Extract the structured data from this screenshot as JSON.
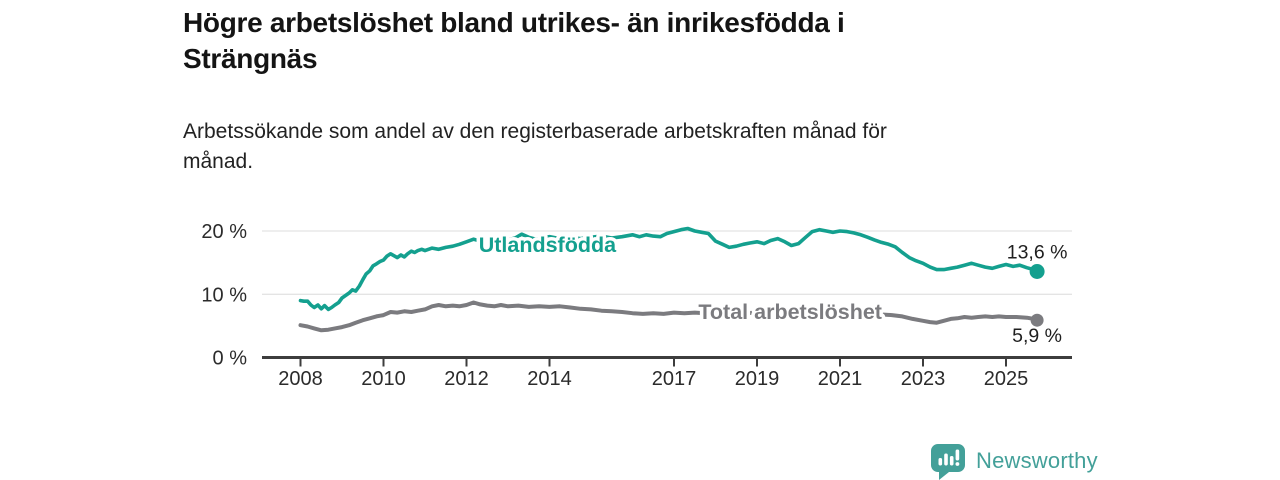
{
  "header": {
    "title": "Högre arbetslöshet bland utrikes- än inrikesfödda i\nSträngnäs",
    "subtitle": "Arbetssökande som andel av den registerbaserade arbetskraften månad för\nmånad."
  },
  "footer": {
    "brand": "Newsworthy",
    "brand_color": "#43a099",
    "logo_icon": "bar-chart-speech-bubble-icon"
  },
  "chart_data": {
    "type": "line",
    "title": "Högre arbetslöshet bland utrikes- än inrikesfödda i Strängnäs",
    "subtitle": "Arbetssökande som andel av den registerbaserade arbetskraften månad för månad.",
    "grid": "horizontal",
    "legend_position": "inline-labels",
    "x_axis": {
      "ticks": [
        2008,
        2010,
        2012,
        2014,
        2017,
        2019,
        2021,
        2023,
        2025
      ],
      "range": [
        2008,
        2025.75
      ]
    },
    "y_axis": {
      "ticks": [
        0,
        10,
        20
      ],
      "tick_suffix": " %",
      "range": [
        0,
        22
      ]
    },
    "colors": {
      "axis": "#3d3d3d",
      "gridline": "#e4e4e4",
      "tick_label": "#2b2b2b",
      "value_label": "#1f1f1f"
    },
    "series": [
      {
        "name": "Utlandsfödda",
        "color": "#14a08f",
        "end_value": 13.6,
        "end_label": "13,6 %",
        "value_label_side": "above",
        "label_pos": {
          "x": 2013.95,
          "y": 17.85
        },
        "points": [
          [
            2008.0,
            9.0
          ],
          [
            2008.08,
            8.9
          ],
          [
            2008.17,
            8.9
          ],
          [
            2008.25,
            8.3
          ],
          [
            2008.33,
            7.9
          ],
          [
            2008.42,
            8.3
          ],
          [
            2008.5,
            7.7
          ],
          [
            2008.58,
            8.2
          ],
          [
            2008.67,
            7.6
          ],
          [
            2008.75,
            7.9
          ],
          [
            2008.83,
            8.3
          ],
          [
            2008.92,
            8.7
          ],
          [
            2009.0,
            9.4
          ],
          [
            2009.17,
            10.2
          ],
          [
            2009.25,
            10.7
          ],
          [
            2009.33,
            10.5
          ],
          [
            2009.42,
            11.3
          ],
          [
            2009.5,
            12.3
          ],
          [
            2009.58,
            13.2
          ],
          [
            2009.67,
            13.7
          ],
          [
            2009.75,
            14.5
          ],
          [
            2009.83,
            14.8
          ],
          [
            2009.92,
            15.2
          ],
          [
            2010.0,
            15.4
          ],
          [
            2010.08,
            16.0
          ],
          [
            2010.17,
            16.4
          ],
          [
            2010.25,
            16.1
          ],
          [
            2010.33,
            15.8
          ],
          [
            2010.42,
            16.2
          ],
          [
            2010.5,
            15.9
          ],
          [
            2010.58,
            16.4
          ],
          [
            2010.67,
            16.8
          ],
          [
            2010.75,
            16.6
          ],
          [
            2010.83,
            16.9
          ],
          [
            2010.92,
            17.1
          ],
          [
            2011.0,
            16.9
          ],
          [
            2011.17,
            17.3
          ],
          [
            2011.33,
            17.1
          ],
          [
            2011.5,
            17.4
          ],
          [
            2011.67,
            17.6
          ],
          [
            2011.83,
            17.9
          ],
          [
            2012.0,
            18.3
          ],
          [
            2012.17,
            18.7
          ],
          [
            2012.33,
            18.4
          ],
          [
            2012.5,
            18.7
          ],
          [
            2012.67,
            18.5
          ],
          [
            2012.83,
            18.8
          ],
          [
            2013.0,
            18.6
          ],
          [
            2013.17,
            18.9
          ],
          [
            2013.33,
            19.5
          ],
          [
            2013.5,
            19.0
          ],
          [
            2013.67,
            18.7
          ],
          [
            2013.83,
            18.9
          ],
          [
            2014.0,
            19.1
          ],
          [
            2014.25,
            18.8
          ],
          [
            2014.5,
            19.0
          ],
          [
            2014.75,
            18.8
          ],
          [
            2015.0,
            19.0
          ],
          [
            2015.25,
            19.2
          ],
          [
            2015.5,
            18.9
          ],
          [
            2015.75,
            19.1
          ],
          [
            2016.0,
            19.4
          ],
          [
            2016.17,
            19.1
          ],
          [
            2016.33,
            19.4
          ],
          [
            2016.5,
            19.2
          ],
          [
            2016.67,
            19.1
          ],
          [
            2016.83,
            19.6
          ],
          [
            2017.0,
            19.9
          ],
          [
            2017.17,
            20.2
          ],
          [
            2017.33,
            20.4
          ],
          [
            2017.5,
            20.0
          ],
          [
            2017.67,
            19.8
          ],
          [
            2017.83,
            19.6
          ],
          [
            2018.0,
            18.4
          ],
          [
            2018.17,
            17.9
          ],
          [
            2018.33,
            17.4
          ],
          [
            2018.5,
            17.6
          ],
          [
            2018.67,
            17.9
          ],
          [
            2018.83,
            18.1
          ],
          [
            2019.0,
            18.3
          ],
          [
            2019.17,
            18.0
          ],
          [
            2019.33,
            18.5
          ],
          [
            2019.5,
            18.8
          ],
          [
            2019.67,
            18.3
          ],
          [
            2019.83,
            17.7
          ],
          [
            2020.0,
            18.0
          ],
          [
            2020.17,
            19.0
          ],
          [
            2020.33,
            19.9
          ],
          [
            2020.5,
            20.2
          ],
          [
            2020.67,
            20.0
          ],
          [
            2020.83,
            19.8
          ],
          [
            2021.0,
            20.0
          ],
          [
            2021.17,
            19.9
          ],
          [
            2021.33,
            19.7
          ],
          [
            2021.5,
            19.4
          ],
          [
            2021.67,
            19.0
          ],
          [
            2021.83,
            18.6
          ],
          [
            2022.0,
            18.2
          ],
          [
            2022.17,
            17.9
          ],
          [
            2022.33,
            17.5
          ],
          [
            2022.5,
            16.6
          ],
          [
            2022.67,
            15.8
          ],
          [
            2022.83,
            15.3
          ],
          [
            2023.0,
            14.9
          ],
          [
            2023.17,
            14.3
          ],
          [
            2023.33,
            13.9
          ],
          [
            2023.5,
            13.9
          ],
          [
            2023.67,
            14.1
          ],
          [
            2023.83,
            14.3
          ],
          [
            2024.0,
            14.6
          ],
          [
            2024.17,
            14.9
          ],
          [
            2024.33,
            14.6
          ],
          [
            2024.5,
            14.3
          ],
          [
            2024.67,
            14.1
          ],
          [
            2024.83,
            14.4
          ],
          [
            2025.0,
            14.7
          ],
          [
            2025.17,
            14.4
          ],
          [
            2025.33,
            14.6
          ],
          [
            2025.5,
            14.2
          ],
          [
            2025.67,
            13.9
          ],
          [
            2025.75,
            13.6
          ]
        ]
      },
      {
        "name": "Total arbetslöshet",
        "color": "#7b7b7f",
        "end_value": 5.9,
        "end_label": "5,9 %",
        "value_label_side": "below",
        "label_pos": {
          "x": 2019.8,
          "y": 7.25
        },
        "points": [
          [
            2008.0,
            5.1
          ],
          [
            2008.17,
            4.9
          ],
          [
            2008.33,
            4.6
          ],
          [
            2008.5,
            4.3
          ],
          [
            2008.67,
            4.4
          ],
          [
            2008.83,
            4.6
          ],
          [
            2009.0,
            4.8
          ],
          [
            2009.17,
            5.1
          ],
          [
            2009.33,
            5.5
          ],
          [
            2009.5,
            5.9
          ],
          [
            2009.67,
            6.2
          ],
          [
            2009.83,
            6.5
          ],
          [
            2010.0,
            6.7
          ],
          [
            2010.17,
            7.2
          ],
          [
            2010.33,
            7.1
          ],
          [
            2010.5,
            7.3
          ],
          [
            2010.67,
            7.2
          ],
          [
            2010.83,
            7.4
          ],
          [
            2011.0,
            7.6
          ],
          [
            2011.17,
            8.1
          ],
          [
            2011.33,
            8.3
          ],
          [
            2011.5,
            8.1
          ],
          [
            2011.67,
            8.2
          ],
          [
            2011.83,
            8.1
          ],
          [
            2012.0,
            8.3
          ],
          [
            2012.17,
            8.7
          ],
          [
            2012.33,
            8.4
          ],
          [
            2012.5,
            8.2
          ],
          [
            2012.67,
            8.1
          ],
          [
            2012.83,
            8.3
          ],
          [
            2013.0,
            8.1
          ],
          [
            2013.25,
            8.2
          ],
          [
            2013.5,
            8.0
          ],
          [
            2013.75,
            8.1
          ],
          [
            2014.0,
            8.0
          ],
          [
            2014.25,
            8.1
          ],
          [
            2014.5,
            7.9
          ],
          [
            2014.75,
            7.7
          ],
          [
            2015.0,
            7.6
          ],
          [
            2015.25,
            7.4
          ],
          [
            2015.5,
            7.3
          ],
          [
            2015.75,
            7.2
          ],
          [
            2016.0,
            7.0
          ],
          [
            2016.25,
            6.9
          ],
          [
            2016.5,
            7.0
          ],
          [
            2016.75,
            6.9
          ],
          [
            2017.0,
            7.1
          ],
          [
            2017.25,
            7.0
          ],
          [
            2017.5,
            7.1
          ],
          [
            2017.75,
            7.0
          ],
          [
            2018.0,
            7.2
          ],
          [
            2018.33,
            7.1
          ],
          [
            2018.67,
            7.0
          ],
          [
            2019.0,
            7.1
          ],
          [
            2019.33,
            7.0
          ],
          [
            2019.67,
            6.9
          ],
          [
            2020.0,
            7.1
          ],
          [
            2020.25,
            7.6
          ],
          [
            2020.5,
            7.5
          ],
          [
            2020.75,
            7.3
          ],
          [
            2021.0,
            7.2
          ],
          [
            2021.33,
            7.1
          ],
          [
            2021.67,
            6.9
          ],
          [
            2022.0,
            6.8
          ],
          [
            2022.25,
            6.7
          ],
          [
            2022.5,
            6.5
          ],
          [
            2022.75,
            6.1
          ],
          [
            2023.0,
            5.8
          ],
          [
            2023.17,
            5.6
          ],
          [
            2023.33,
            5.5
          ],
          [
            2023.5,
            5.8
          ],
          [
            2023.67,
            6.1
          ],
          [
            2023.83,
            6.2
          ],
          [
            2024.0,
            6.4
          ],
          [
            2024.17,
            6.3
          ],
          [
            2024.33,
            6.4
          ],
          [
            2024.5,
            6.5
          ],
          [
            2024.67,
            6.4
          ],
          [
            2024.83,
            6.5
          ],
          [
            2025.0,
            6.4
          ],
          [
            2025.25,
            6.4
          ],
          [
            2025.5,
            6.3
          ],
          [
            2025.67,
            6.1
          ],
          [
            2025.75,
            5.9
          ]
        ]
      }
    ]
  }
}
